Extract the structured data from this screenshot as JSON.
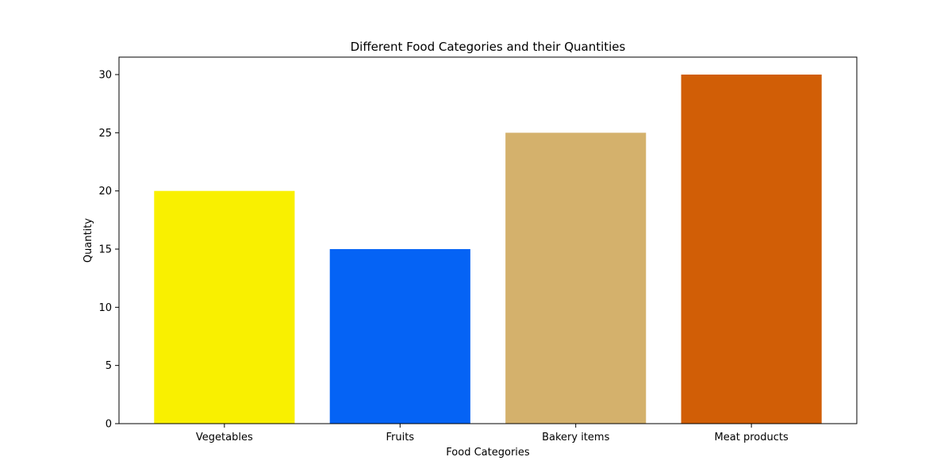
{
  "chart_data": {
    "type": "bar",
    "title": "Different Food Categories and their Quantities",
    "xlabel": "Food Categories",
    "ylabel": "Quantity",
    "categories": [
      "Vegetables",
      "Fruits",
      "Bakery items",
      "Meat products"
    ],
    "values": [
      20,
      15,
      25,
      30
    ],
    "colors": [
      "#f9f000",
      "#0563f5",
      "#d4b16c",
      "#d15e06"
    ],
    "ylim": [
      0,
      31.5
    ],
    "yticks": [
      0,
      5,
      10,
      15,
      20,
      25,
      30
    ],
    "grid": false,
    "legend": "none"
  }
}
